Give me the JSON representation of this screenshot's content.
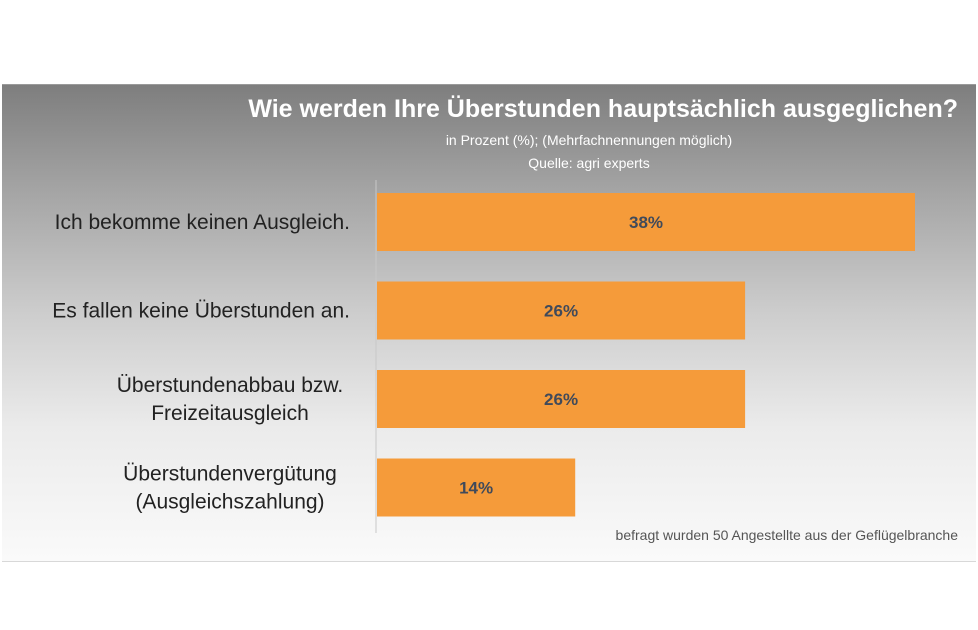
{
  "chart_data": {
    "type": "bar",
    "orientation": "horizontal",
    "title": "Wie werden Ihre Überstunden hauptsächlich ausgeglichen?",
    "subtitle": "in Prozent (%); (Mehrfachnennungen möglich)",
    "source": "Quelle: agri experts",
    "footnote": "befragt wurden 50 Angestellte aus der Geflügelbranche",
    "categories": [
      [
        "Ich bekomme keinen Ausgleich."
      ],
      [
        "Es fallen keine Überstunden an."
      ],
      [
        "Überstundenabbau bzw.",
        "Freizeitausgleich"
      ],
      [
        "Überstundenvergütung",
        "(Ausgleichszahlung)"
      ]
    ],
    "values": [
      38,
      26,
      26,
      14
    ],
    "value_labels": [
      "38%",
      "26%",
      "26%",
      "14%"
    ],
    "unit": "%",
    "xlim": [
      0,
      40
    ],
    "bar_color": "#f59b3a",
    "grid": false,
    "legend": "none"
  }
}
